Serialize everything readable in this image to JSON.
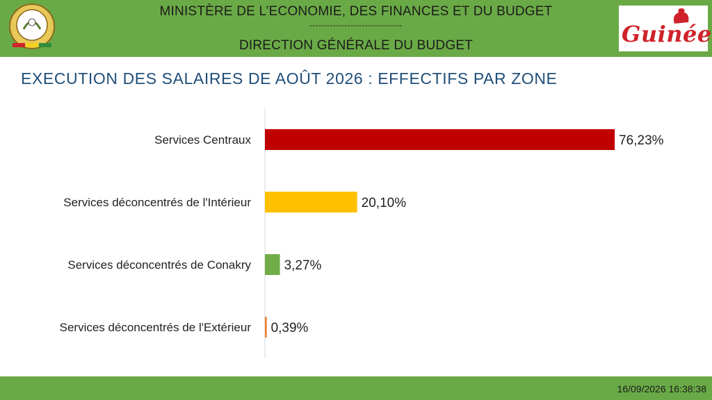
{
  "header": {
    "ministry": "MINISTÈRE DE L’ECONOMIE, DES FINANCES ET DU BUDGET",
    "separator": "--------------------------------",
    "direction": "DIRECTION GÉNÉRALE DU BUDGET",
    "logo_text": "Guinée",
    "emblem_motto": "TRAVAIL JUSTICE SOLIDARITÉ"
  },
  "page_title": "EXECUTION DES SALAIRES DE AOÛT 2026 : EFFECTIFS PAR ZONE",
  "footer": {
    "timestamp": "16/09/2026 16:38:38"
  },
  "colors": {
    "header_green": "#6aaa46",
    "title_blue": "#1f4e79",
    "logo_red": "#d0222a"
  },
  "chart_data": {
    "type": "bar",
    "orientation": "horizontal",
    "categories": [
      "Services Centraux",
      "Services déconcentrés de l'Intérieur",
      "Services déconcentrés de Conakry",
      "Services déconcentrés de l'Extérieur"
    ],
    "values": [
      76.23,
      20.1,
      3.27,
      0.39
    ],
    "value_labels": [
      "76,23%",
      "20,10%",
      "3,27%",
      "0,39%"
    ],
    "colors": [
      "#c00000",
      "#ffc000",
      "#70ad47",
      "#ed7d31"
    ],
    "xlim": [
      0,
      100
    ],
    "grid": false,
    "legend": "none"
  }
}
